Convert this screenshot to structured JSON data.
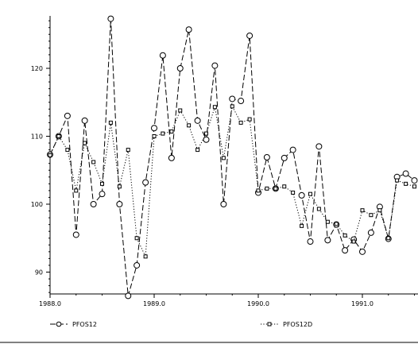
{
  "chart_data": {
    "type": "line",
    "title": "",
    "xlabel": "",
    "ylabel": "",
    "xlim": [
      1988.0,
      1991.5
    ],
    "ylim": [
      85,
      128
    ],
    "x_ticks": [
      1988.0,
      1989.0,
      1990.0,
      1991.0
    ],
    "x_tick_labels": [
      "1988.0",
      "1989.0",
      "1990.0",
      "1991.0"
    ],
    "y_ticks": [
      90,
      100,
      110,
      120
    ],
    "y_tick_labels": [
      "90",
      "100",
      "110",
      "120"
    ],
    "grid": false,
    "legend_position": "bottom",
    "x": [
      1988.0,
      1988.083,
      1988.167,
      1988.25,
      1988.333,
      1988.417,
      1988.5,
      1988.583,
      1988.667,
      1988.75,
      1988.833,
      1988.917,
      1989.0,
      1989.083,
      1989.167,
      1989.25,
      1989.333,
      1989.417,
      1989.5,
      1989.583,
      1989.667,
      1989.75,
      1989.833,
      1989.917,
      1990.0,
      1990.083,
      1990.167,
      1990.25,
      1990.333,
      1990.417,
      1990.5,
      1990.583,
      1990.667,
      1990.75,
      1990.833,
      1990.917,
      1991.0,
      1991.083,
      1991.167,
      1991.25,
      1991.333,
      1991.417,
      1991.5
    ],
    "series": [
      {
        "name": "PFOS12",
        "line_style": "dashed",
        "marker": "circle",
        "values": [
          107.3,
          110.0,
          113.0,
          95.5,
          112.3,
          100.0,
          101.5,
          127.3,
          100.0,
          86.5,
          91.0,
          103.2,
          111.2,
          121.9,
          106.8,
          120.0,
          125.7,
          112.3,
          109.5,
          120.4,
          100.0,
          115.5,
          115.2,
          124.8,
          101.7,
          106.9,
          102.3,
          106.8,
          108.0,
          101.3,
          94.5,
          108.5,
          94.7,
          97.0,
          93.2,
          94.8,
          93.0,
          95.8,
          99.6,
          94.9,
          104.0,
          104.5,
          103.5
        ]
      },
      {
        "name": "PFOS12D",
        "line_style": "dotted",
        "marker": "square",
        "values": [
          107.2,
          110.0,
          108.0,
          102.0,
          109.0,
          106.2,
          103.0,
          112.0,
          102.6,
          108.0,
          95.0,
          92.3,
          110.0,
          110.4,
          110.7,
          113.8,
          111.6,
          108.0,
          110.4,
          114.3,
          106.8,
          114.4,
          112.0,
          112.5,
          102.0,
          102.3,
          102.3,
          102.6,
          101.7,
          96.8,
          101.5,
          99.3,
          97.4,
          97.1,
          95.4,
          94.5,
          99.1,
          98.4,
          99.1,
          95.0,
          103.5,
          103.0,
          102.6
        ]
      }
    ]
  }
}
